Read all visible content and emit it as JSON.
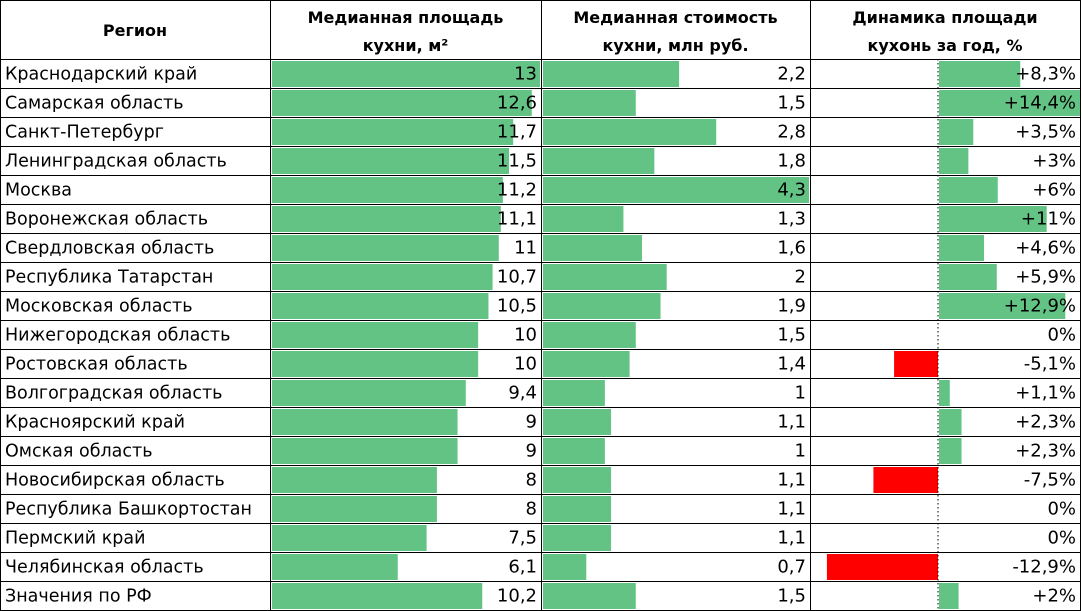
{
  "chart_data": {
    "type": "table",
    "columns": [
      {
        "key": "region",
        "header": [
          "Регион"
        ]
      },
      {
        "key": "area",
        "header": [
          "Медианная площадь",
          "кухни, м²"
        ]
      },
      {
        "key": "cost",
        "header": [
          "Медианная стоимость",
          "кухни, млн руб."
        ]
      },
      {
        "key": "growth",
        "header": [
          "Динамика площади",
          "кухонь за год, %"
        ]
      }
    ],
    "rows": [
      {
        "region": "Краснодарский край",
        "area": 13,
        "area_label": "13",
        "cost": 2.2,
        "cost_label": "2,2",
        "growth": 8.3,
        "growth_label": "+8,3%"
      },
      {
        "region": "Самарская область",
        "area": 12.6,
        "area_label": "12,6",
        "cost": 1.5,
        "cost_label": "1,5",
        "growth": 14.4,
        "growth_label": "+14,4%"
      },
      {
        "region": "Санкт-Петербург",
        "area": 11.7,
        "area_label": "11,7",
        "cost": 2.8,
        "cost_label": "2,8",
        "growth": 3.5,
        "growth_label": "+3,5%"
      },
      {
        "region": "Ленинградская область",
        "area": 11.5,
        "area_label": "11,5",
        "cost": 1.8,
        "cost_label": "1,8",
        "growth": 3,
        "growth_label": "+3%"
      },
      {
        "region": "Москва",
        "area": 11.2,
        "area_label": "11,2",
        "cost": 4.3,
        "cost_label": "4,3",
        "growth": 6,
        "growth_label": "+6%"
      },
      {
        "region": "Воронежская область",
        "area": 11.1,
        "area_label": "11,1",
        "cost": 1.3,
        "cost_label": "1,3",
        "growth": 11,
        "growth_label": "+11%"
      },
      {
        "region": "Свердловская область",
        "area": 11,
        "area_label": "11",
        "cost": 1.6,
        "cost_label": "1,6",
        "growth": 4.6,
        "growth_label": "+4,6%"
      },
      {
        "region": "Республика Татарстан",
        "area": 10.7,
        "area_label": "10,7",
        "cost": 2,
        "cost_label": "2",
        "growth": 5.9,
        "growth_label": "+5,9%"
      },
      {
        "region": "Московская область",
        "area": 10.5,
        "area_label": "10,5",
        "cost": 1.9,
        "cost_label": "1,9",
        "growth": 12.9,
        "growth_label": "+12,9%"
      },
      {
        "region": "Нижегородская область",
        "area": 10,
        "area_label": "10",
        "cost": 1.5,
        "cost_label": "1,5",
        "growth": 0,
        "growth_label": "0%"
      },
      {
        "region": "Ростовская область",
        "area": 10,
        "area_label": "10",
        "cost": 1.4,
        "cost_label": "1,4",
        "growth": -5.1,
        "growth_label": "-5,1%"
      },
      {
        "region": "Волгоградская область",
        "area": 9.4,
        "area_label": "9,4",
        "cost": 1,
        "cost_label": "1",
        "growth": 1.1,
        "growth_label": "+1,1%"
      },
      {
        "region": "Красноярский край",
        "area": 9,
        "area_label": "9",
        "cost": 1.1,
        "cost_label": "1,1",
        "growth": 2.3,
        "growth_label": "+2,3%"
      },
      {
        "region": "Омская область",
        "area": 9,
        "area_label": "9",
        "cost": 1,
        "cost_label": "1",
        "growth": 2.3,
        "growth_label": "+2,3%"
      },
      {
        "region": "Новосибирская область",
        "area": 8,
        "area_label": "8",
        "cost": 1.1,
        "cost_label": "1,1",
        "growth": -7.5,
        "growth_label": "-7,5%"
      },
      {
        "region": "Республика Башкортостан",
        "area": 8,
        "area_label": "8",
        "cost": 1.1,
        "cost_label": "1,1",
        "growth": 0,
        "growth_label": "0%"
      },
      {
        "region": "Пермский край",
        "area": 7.5,
        "area_label": "7,5",
        "cost": 1.1,
        "cost_label": "1,1",
        "growth": 0,
        "growth_label": "0%"
      },
      {
        "region": "Челябинская область",
        "area": 6.1,
        "area_label": "6,1",
        "cost": 0.7,
        "cost_label": "0,7",
        "growth": -12.9,
        "growth_label": "-12,9%"
      },
      {
        "region": "Значения по РФ",
        "area": 10.2,
        "area_label": "10,2",
        "cost": 1.5,
        "cost_label": "1,5",
        "growth": 2,
        "growth_label": "+2%"
      }
    ],
    "bar_scale": {
      "area_max": 13,
      "cost_max": 4.3,
      "growth_abs_max": 14.4
    },
    "colors": {
      "positive": "#63c384",
      "negative": "#ff0000",
      "grid": "#000000"
    }
  }
}
